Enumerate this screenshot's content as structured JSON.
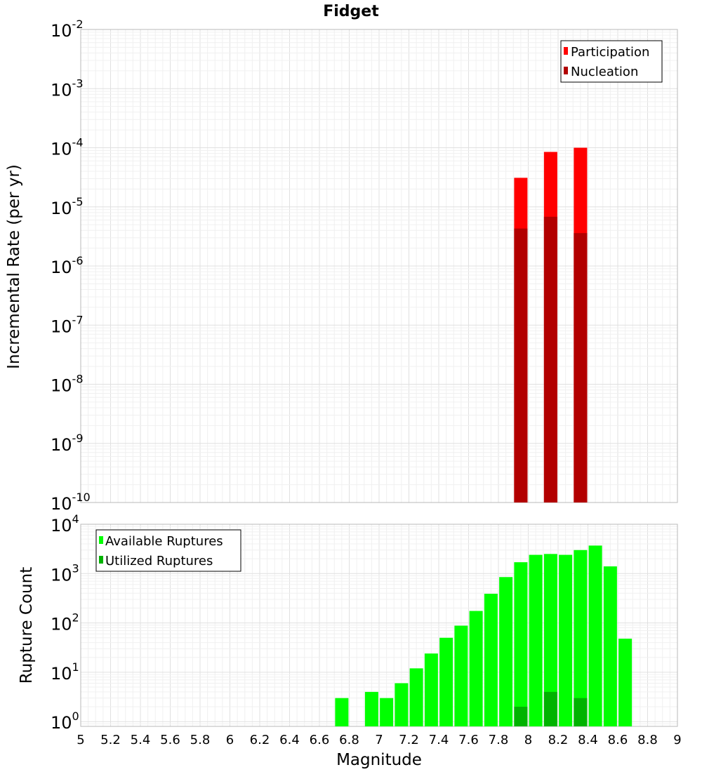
{
  "chart_data": [
    {
      "type": "bar",
      "title": "Fidget",
      "ylabel": "Incremental Rate (per yr)",
      "yscale": "log",
      "ylim": [
        1e-10,
        0.01
      ],
      "xlim": [
        5,
        9
      ],
      "y_ticks": [
        {
          "base": "10",
          "exp": "-2"
        },
        {
          "base": "10",
          "exp": "-3"
        },
        {
          "base": "10",
          "exp": "-4"
        },
        {
          "base": "10",
          "exp": "-5"
        },
        {
          "base": "10",
          "exp": "-6"
        },
        {
          "base": "10",
          "exp": "-7"
        },
        {
          "base": "10",
          "exp": "-8"
        },
        {
          "base": "10",
          "exp": "-9"
        },
        {
          "base": "10",
          "exp": "-10"
        }
      ],
      "grid": true,
      "legend_position": "top-right",
      "x": [
        7.95,
        8.15,
        8.35
      ],
      "series": [
        {
          "name": "Participation",
          "color": "#ff0000",
          "values": [
            3.1e-05,
            8.5e-05,
            0.0001
          ]
        },
        {
          "name": "Nucleation",
          "color": "#b20000",
          "values": [
            4.3e-06,
            6.8e-06,
            3.6e-06
          ]
        }
      ]
    },
    {
      "type": "bar",
      "xlabel": "Magnitude",
      "ylabel": "Rupture Count",
      "yscale": "log",
      "ylim": [
        0.8,
        10000
      ],
      "xlim": [
        5,
        9
      ],
      "x_ticks": [
        "5",
        "5.2",
        "5.4",
        "5.6",
        "5.8",
        "6",
        "6.2",
        "6.4",
        "6.6",
        "6.8",
        "7",
        "7.2",
        "7.4",
        "7.6",
        "7.8",
        "8",
        "8.2",
        "8.4",
        "8.6",
        "8.8",
        "9"
      ],
      "y_ticks": [
        {
          "base": "10",
          "exp": "4"
        },
        {
          "base": "10",
          "exp": "3"
        },
        {
          "base": "10",
          "exp": "2"
        },
        {
          "base": "10",
          "exp": "1"
        },
        {
          "base": "10",
          "exp": "0"
        }
      ],
      "grid": true,
      "legend_position": "top-left",
      "series": [
        {
          "name": "Available Ruptures",
          "color": "#00ff00",
          "x": [
            6.75,
            6.95,
            7.05,
            7.15,
            7.25,
            7.35,
            7.45,
            7.55,
            7.65,
            7.75,
            7.85,
            7.95,
            8.05,
            8.15,
            8.25,
            8.35,
            8.45,
            8.55,
            8.65
          ],
          "values": [
            3,
            4,
            3,
            6,
            12,
            24,
            50,
            88,
            175,
            390,
            850,
            1700,
            2400,
            2500,
            2400,
            3000,
            3700,
            1400,
            48
          ]
        },
        {
          "name": "Utilized Ruptures",
          "color": "#00b300",
          "x": [
            7.95,
            8.15,
            8.35
          ],
          "values": [
            2,
            4,
            3
          ]
        }
      ]
    }
  ]
}
